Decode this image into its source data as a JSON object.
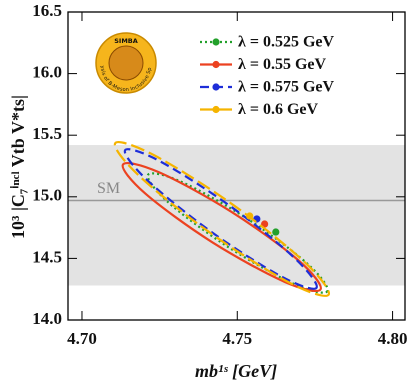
{
  "chart_data": {
    "type": "ellipse",
    "xlabel": "mb¹ˢ [GeV]",
    "ylabel": "10³ |C₇ⁱⁿᶜˡ Vtb V*ts|",
    "xlim": [
      4.6955,
      4.804
    ],
    "ylim": [
      14.0,
      16.5
    ],
    "xticks": [
      {
        "value": 4.7,
        "label": "4.70"
      },
      4.75,
      {
        "value": 4.8,
        "label": "4.80"
      }
    ],
    "yticks": [
      {
        "value": 14,
        "label": "14.0"
      },
      14.5,
      {
        "value": 15,
        "label": "15.0"
      },
      15.5,
      {
        "value": 16,
        "label": "16.0"
      },
      16.5
    ],
    "band": [
      14.28,
      15.42
    ],
    "reference": {
      "label": "SM",
      "value": 14.97
    },
    "logo": {
      "title": "SIMBA",
      "text": "Analysis of B-Meson Inclusive Spectra"
    },
    "legend": "upper right",
    "series": [
      {
        "name": "λ = 0.525 GeV",
        "color": "#22a02a",
        "linestyle": "dotted",
        "x": 4.7624,
        "y": 14.714,
        "contour_x": [
          4.779,
          4.7685,
          4.7472,
          4.7276,
          4.7213,
          4.7319,
          4.7532,
          4.7727
        ],
        "contour_y": [
          14.233,
          14.29,
          14.59,
          14.959,
          15.179,
          15.123,
          14.822,
          14.454
        ]
      },
      {
        "name": "λ = 0.55 GeV",
        "color": "#ec4220",
        "linestyle": "solid",
        "x": 4.7588,
        "y": 14.779,
        "contour_x": [
          4.7768,
          4.7653,
          4.7419,
          4.7204,
          4.7132,
          4.7247,
          4.7481,
          4.7697
        ],
        "contour_y": [
          14.248,
          14.309,
          14.632,
          15.026,
          15.262,
          15.2,
          14.878,
          14.484
        ]
      },
      {
        "name": "λ = 0.575 GeV",
        "color": "#1e2ed8",
        "linestyle": "dashed",
        "x": 4.7563,
        "y": 14.82,
        "contour_x": [
          4.7755,
          4.7644,
          4.7417,
          4.7208,
          4.7139,
          4.725,
          4.7477,
          4.7686
        ],
        "contour_y": [
          14.261,
          14.35,
          14.714,
          15.14,
          15.379,
          15.29,
          14.925,
          14.499
        ]
      },
      {
        "name": "λ = 0.6 GeV",
        "color": "#f5b400",
        "linestyle": "longdash",
        "x": 4.754,
        "y": 14.844,
        "contour_x": [
          4.7794,
          4.767,
          4.7417,
          4.7184,
          4.7107,
          4.7231,
          4.7484,
          4.7717
        ],
        "contour_y": [
          14.205,
          14.3,
          14.7,
          15.17,
          15.435,
          15.339,
          14.939,
          14.469
        ]
      }
    ]
  }
}
